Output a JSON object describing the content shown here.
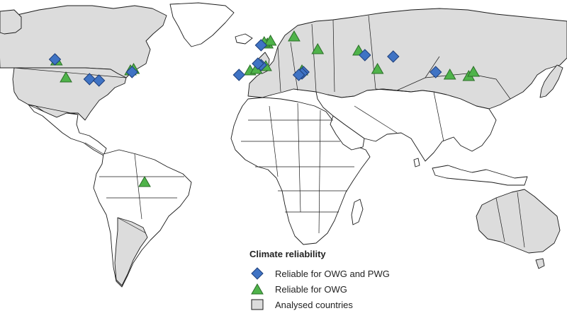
{
  "legend": {
    "title": "Climate reliability",
    "items": [
      {
        "label": "Reliable for OWG and PWG",
        "symbol": "diamond",
        "color": "#3f73c4"
      },
      {
        "label": "Reliable for OWG",
        "symbol": "triangle",
        "color": "#4fb34a"
      },
      {
        "label": "Analysed countries",
        "symbol": "square",
        "color": "#dcdcdc"
      }
    ]
  },
  "colors": {
    "diamond": "#3f73c4",
    "triangle": "#4fb34a",
    "analysed": "#dcdcdc",
    "outline": "#1a1a1a"
  },
  "sites": {
    "owg_and_pwg": [
      {
        "lon": -125,
        "lat": 50
      },
      {
        "lon": -103,
        "lat": 36
      },
      {
        "lon": -97,
        "lat": 35
      },
      {
        "lon": -76,
        "lat": 41
      },
      {
        "lon": 6,
        "lat": 60
      },
      {
        "lon": -8,
        "lat": 39
      },
      {
        "lon": 6,
        "lat": 46
      },
      {
        "lon": 4,
        "lat": 47
      },
      {
        "lon": 33,
        "lat": 41
      },
      {
        "lon": 32,
        "lat": 40
      },
      {
        "lon": 30,
        "lat": 39
      },
      {
        "lon": 72,
        "lat": 53
      },
      {
        "lon": 90,
        "lat": 52
      },
      {
        "lon": 117,
        "lat": 41
      }
    ],
    "owg_only": [
      {
        "lon": -124,
        "lat": 49
      },
      {
        "lon": -118,
        "lat": 37
      },
      {
        "lon": -77,
        "lat": 42
      },
      {
        "lon": -75,
        "lat": 43
      },
      {
        "lon": -68,
        "lat": -37
      },
      {
        "lon": 10,
        "lat": 61
      },
      {
        "lon": 8,
        "lat": 62
      },
      {
        "lon": 12,
        "lat": 63
      },
      {
        "lon": 27,
        "lat": 66
      },
      {
        "lon": 42,
        "lat": 57
      },
      {
        "lon": 68,
        "lat": 56
      },
      {
        "lon": -1,
        "lat": 42
      },
      {
        "lon": 3,
        "lat": 43
      },
      {
        "lon": 9,
        "lat": 45
      },
      {
        "lon": 32,
        "lat": 42
      },
      {
        "lon": 80,
        "lat": 43
      },
      {
        "lon": 126,
        "lat": 39
      },
      {
        "lon": 138,
        "lat": 38
      },
      {
        "lon": 141,
        "lat": 41
      }
    ]
  }
}
